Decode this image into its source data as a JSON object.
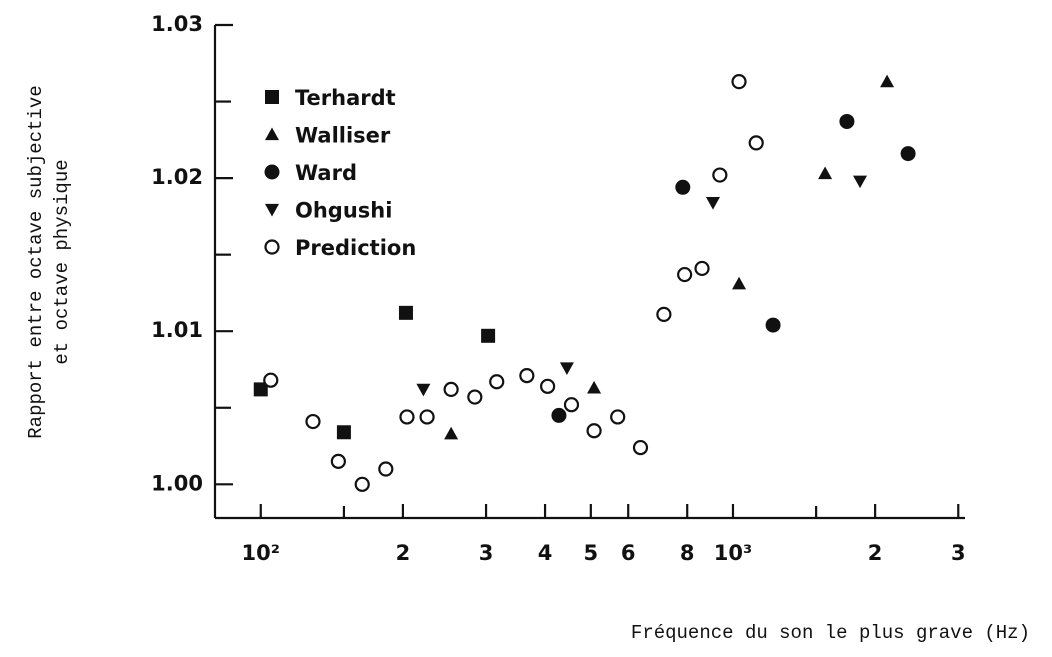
{
  "chart_data": {
    "type": "scatter",
    "xlabel": "Fréquence du son le plus grave (Hz)",
    "ylabel": [
      "Rapport entre octave subjective",
      "et octave physique"
    ],
    "xscale": "log",
    "xlim": [
      80,
      3100
    ],
    "ylim": [
      0.9978,
      1.03
    ],
    "xticks": [
      {
        "value": 100,
        "label": "10²"
      },
      {
        "value": 200,
        "label": "2"
      },
      {
        "value": 300,
        "label": "3"
      },
      {
        "value": 400,
        "label": "4"
      },
      {
        "value": 500,
        "label": "5"
      },
      {
        "value": 600,
        "label": "6"
      },
      {
        "value": 800,
        "label": "8"
      },
      {
        "value": 1000,
        "label": "10³"
      },
      {
        "value": 2000,
        "label": "2"
      },
      {
        "value": 3000,
        "label": "3"
      }
    ],
    "xminorticks": [
      150,
      1500
    ],
    "yticks": [
      {
        "value": 1,
        "label": "1.00"
      },
      1.01,
      1.02,
      1.03
    ],
    "yminorticks": [
      1.005,
      1.015,
      1.025
    ],
    "legend": "upper left",
    "series": [
      {
        "name": "Terhardt",
        "color": "#111111",
        "marker": "square",
        "x": [
          100,
          150,
          203,
          303
        ],
        "values": [
          1.0062,
          1.0034,
          1.0112,
          1.0097
        ]
      },
      {
        "name": "Walliser",
        "color": "#111111",
        "marker": "triangle",
        "x": [
          253,
          508,
          1030,
          1567,
          2120
        ],
        "values": [
          1.0033,
          1.0063,
          1.0131,
          1.0203,
          1.0263
        ]
      },
      {
        "name": "Ward",
        "color": "#111111",
        "marker": "circle",
        "x": [
          428,
          783,
          1216,
          1743,
          2349
        ],
        "values": [
          1.0045,
          1.0194,
          1.0104,
          1.0237,
          1.0216
        ]
      },
      {
        "name": "Ohgushi",
        "color": "#111111",
        "marker": "triangle-down",
        "x": [
          221,
          445,
          907,
          1858
        ],
        "values": [
          1.0062,
          1.0076,
          1.0184,
          1.0198
        ]
      },
      {
        "name": "Prediction",
        "color": "#111111",
        "marker": "circle-open",
        "x": [
          105,
          129,
          146,
          164,
          184,
          204,
          225,
          253,
          284,
          316,
          366,
          405,
          455,
          508,
          570,
          637,
          714,
          790,
          860,
          938,
          1030,
          1120
        ],
        "values": [
          1.0068,
          1.0041,
          1.0015,
          1.0,
          1.001,
          1.0044,
          1.0044,
          1.0062,
          1.0057,
          1.0067,
          1.0071,
          1.0064,
          1.0052,
          1.0035,
          1.0044,
          1.0024,
          1.0111,
          1.0137,
          1.0141,
          1.0202,
          1.0263,
          1.0223
        ]
      }
    ]
  }
}
